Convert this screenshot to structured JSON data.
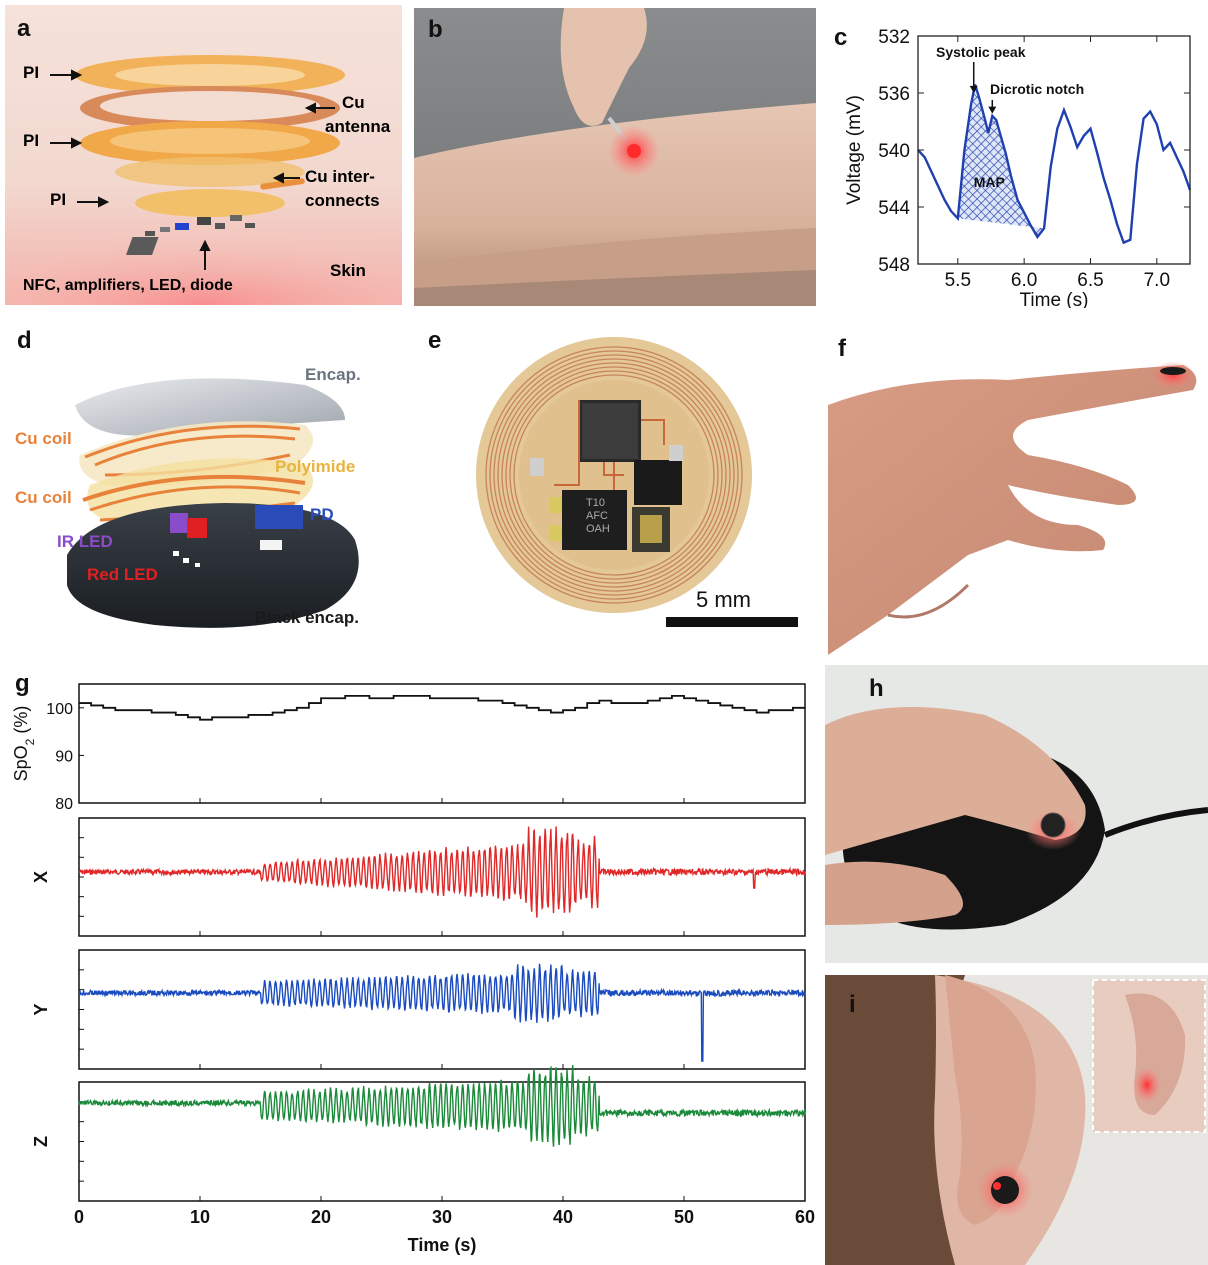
{
  "panels": {
    "a": {
      "label": "a",
      "layers": [
        "PI",
        "PI",
        "PI"
      ],
      "callouts": {
        "cu_antenna_1": "Cu",
        "cu_antenna_2": "antenna",
        "cu_inter_1": "Cu inter-",
        "cu_inter_2": "connects",
        "skin": "Skin",
        "components": "NFC, amplifiers, LED, diode"
      },
      "colors": {
        "background": "#f2dcd4",
        "layer": "#f0a848",
        "skin": "#f4a0a0"
      }
    },
    "b": {
      "label": "b"
    },
    "c": {
      "label": "c"
    },
    "d": {
      "label": "d",
      "callouts": {
        "encap": "Encap.",
        "cu_coil_1": "Cu coil",
        "polyimide": "Polyimide",
        "cu_coil_2": "Cu coil",
        "pd": "PD",
        "ir_led": "IR LED",
        "red_led": "Red LED",
        "black_encap": "Black encap."
      },
      "colors": {
        "cu_coil": "#e8823a",
        "polyimide": "#e8b440",
        "pd": "#2a4cb8",
        "ir_led": "#8a4cc8",
        "red_led": "#e02020"
      }
    },
    "e": {
      "label": "e",
      "scale_bar": "5 mm",
      "chip_text_1": "T10",
      "chip_text_2": "AFC",
      "chip_text_3": "OAH"
    },
    "f": {
      "label": "f"
    },
    "g": {
      "label": "g"
    },
    "h": {
      "label": "h"
    },
    "i": {
      "label": "i"
    }
  },
  "chart_data": [
    {
      "panel": "c",
      "type": "line",
      "title": "",
      "xlabel": "Time (s)",
      "ylabel": "Voltage (mV)",
      "xlim": [
        5.2,
        7.25
      ],
      "ylim": [
        548,
        532
      ],
      "y_inverted": true,
      "xticks": [
        "5.5",
        "6.0",
        "6.5",
        "7.0"
      ],
      "yticks": [
        "532",
        "536",
        "540",
        "544",
        "548"
      ],
      "annotations": [
        "Systolic peak",
        "Dicrotic notch",
        "MAP"
      ],
      "series": [
        {
          "color": "#2040b0",
          "x": [
            5.2,
            5.25,
            5.3,
            5.35,
            5.4,
            5.45,
            5.5,
            5.55,
            5.6,
            5.63,
            5.66,
            5.7,
            5.73,
            5.76,
            5.79,
            5.82,
            5.86,
            5.9,
            5.95,
            6.0,
            6.05,
            6.1,
            6.15,
            6.2,
            6.25,
            6.3,
            6.35,
            6.4,
            6.45,
            6.5,
            6.55,
            6.6,
            6.65,
            6.7,
            6.75,
            6.8,
            6.85,
            6.9,
            6.95,
            7.0,
            7.05,
            7.1,
            7.15,
            7.2,
            7.25
          ],
          "y": [
            540,
            540.5,
            541.5,
            542.5,
            543.5,
            544.3,
            544.8,
            540,
            536.8,
            535.4,
            536.3,
            537.7,
            538.8,
            537.6,
            537.9,
            538.9,
            540.2,
            541.8,
            543.5,
            544.4,
            545.3,
            546.1,
            545.5,
            541.2,
            538.5,
            537.2,
            538.4,
            539.8,
            539.0,
            538.5,
            540.2,
            542,
            543.5,
            545.2,
            546.5,
            546.3,
            541,
            537.8,
            537.3,
            538.2,
            540,
            539.5,
            540.5,
            541.5,
            542.8
          ]
        }
      ],
      "map_fill_x_range": [
        5.5,
        6.15
      ]
    },
    {
      "panel": "g",
      "type": "line",
      "xlabel": "Time (s)",
      "xlim": [
        0,
        60
      ],
      "xticks": [
        "0",
        "10",
        "20",
        "30",
        "40",
        "50",
        "60"
      ],
      "subplots": [
        {
          "ylabel": "SpO2 (%)",
          "ylabel_main": "SpO",
          "ylabel_sub": "2",
          "ylabel_tail": " (%)",
          "ylim": [
            80,
            105
          ],
          "yticks": [
            "80",
            "90",
            "100"
          ],
          "color": "#111111",
          "steps": [
            [
              0,
              101
            ],
            [
              1,
              100.5
            ],
            [
              2,
              100
            ],
            [
              3,
              99.5
            ],
            [
              5,
              99.5
            ],
            [
              6,
              99
            ],
            [
              8,
              98.5
            ],
            [
              9,
              98
            ],
            [
              10,
              97.5
            ],
            [
              11,
              98
            ],
            [
              13,
              98
            ],
            [
              14,
              98.5
            ],
            [
              16,
              99
            ],
            [
              17,
              99.5
            ],
            [
              18,
              100
            ],
            [
              19,
              101
            ],
            [
              20,
              102
            ],
            [
              22,
              102.5
            ],
            [
              24,
              102
            ],
            [
              26,
              102.5
            ],
            [
              28,
              102.5
            ],
            [
              29,
              102
            ],
            [
              31,
              102
            ],
            [
              32,
              102
            ],
            [
              33,
              101.5
            ],
            [
              34,
              101.5
            ],
            [
              35,
              101
            ],
            [
              36,
              100.5
            ],
            [
              37,
              100
            ],
            [
              38,
              99.5
            ],
            [
              39,
              99
            ],
            [
              40,
              99.5
            ],
            [
              41,
              100
            ],
            [
              42,
              101
            ],
            [
              43,
              101.5
            ],
            [
              44,
              101
            ],
            [
              46,
              101
            ],
            [
              47,
              101.5
            ],
            [
              48,
              102
            ],
            [
              49,
              102.5
            ],
            [
              50,
              102
            ],
            [
              51,
              101.5
            ],
            [
              52,
              101
            ],
            [
              53,
              100.5
            ],
            [
              54,
              100
            ],
            [
              55,
              99.5
            ],
            [
              56,
              99
            ],
            [
              57,
              99.5
            ],
            [
              58,
              99.5
            ],
            [
              59,
              100
            ],
            [
              60,
              100
            ]
          ]
        },
        {
          "ylabel": "X",
          "color": "#e02828"
        },
        {
          "ylabel": "Y",
          "color": "#1a4cc0"
        },
        {
          "ylabel": "Z",
          "color": "#1a8a3a"
        }
      ]
    }
  ]
}
